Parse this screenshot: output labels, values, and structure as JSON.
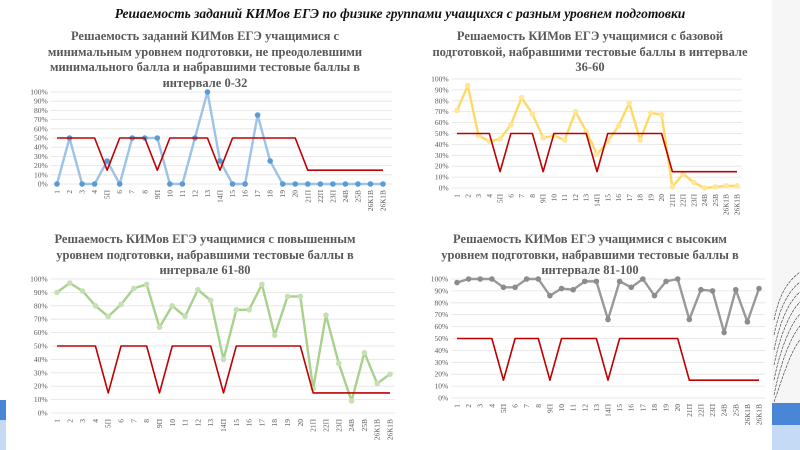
{
  "page": {
    "title": "Решаемость заданий КИМов ЕГЭ по физике группами учащихся с разным уровнем подготовки"
  },
  "chart_data": [
    {
      "type": "line",
      "title": "Решаемость заданий КИМов ЕГЭ учащимися с минимальным уровнем подготовки, не преодолевшими минимального балла и набравшими тестовые баллы в интервале 0-32",
      "categories": [
        "1",
        "2",
        "3",
        "4",
        "5П",
        "6",
        "7",
        "8",
        "9П",
        "10",
        "11",
        "12",
        "13",
        "14П",
        "15",
        "16",
        "17",
        "18",
        "19",
        "20",
        "21П",
        "22П",
        "23П",
        "24В",
        "25В",
        "26К1В",
        "26К1В"
      ],
      "ylim": [
        0,
        100
      ],
      "yticks": [
        "0%",
        "10%",
        "20%",
        "30%",
        "40%",
        "50%",
        "60%",
        "70%",
        "80%",
        "90%",
        "100%"
      ],
      "grid": true,
      "series": [
        {
          "color": "#9dc3e6",
          "marker_color": "#5b9bd5",
          "values": [
            0,
            50,
            0,
            0,
            25,
            0,
            50,
            50,
            50,
            0,
            0,
            50,
            100,
            25,
            0,
            0,
            75,
            25,
            0,
            0,
            0,
            0,
            0,
            0,
            0,
            0,
            0
          ]
        },
        {
          "color": "#c00000",
          "values": [
            50,
            50,
            50,
            50,
            15,
            50,
            50,
            50,
            15,
            50,
            50,
            50,
            50,
            15,
            50,
            50,
            50,
            50,
            50,
            50,
            15,
            15,
            15,
            15,
            15,
            15,
            15
          ]
        }
      ]
    },
    {
      "type": "line",
      "title": "Решаемость КИМов ЕГЭ учащимися с базовой подготовкой, набравшими тестовые баллы в интервале 36-60",
      "categories": [
        "1",
        "2",
        "3",
        "4",
        "5П",
        "6",
        "7",
        "8",
        "9П",
        "10",
        "11",
        "12",
        "13",
        "14П",
        "15",
        "16",
        "17",
        "18",
        "19",
        "20",
        "21П",
        "22П",
        "23П",
        "24В",
        "25В",
        "26К1В",
        "26К1В"
      ],
      "ylim": [
        0,
        100
      ],
      "yticks": [
        "0%",
        "10%",
        "20%",
        "30%",
        "40%",
        "50%",
        "60%",
        "70%",
        "80%",
        "90%",
        "100%"
      ],
      "grid": true,
      "series": [
        {
          "color": "#ffd966",
          "marker_color": "#ffe699",
          "values": [
            71,
            94,
            48,
            43,
            45,
            58,
            83,
            68,
            46,
            48,
            44,
            70,
            52,
            31,
            43,
            57,
            78,
            44,
            69,
            67,
            1,
            13,
            5,
            0,
            1,
            2,
            2
          ]
        },
        {
          "color": "#c00000",
          "values": [
            50,
            50,
            50,
            50,
            15,
            50,
            50,
            50,
            15,
            50,
            50,
            50,
            50,
            15,
            50,
            50,
            50,
            50,
            50,
            50,
            15,
            15,
            15,
            15,
            15,
            15,
            15
          ]
        }
      ]
    },
    {
      "type": "line",
      "title": "Решаемость КИМов ЕГЭ учащимися с повышенным уровнем подготовки, набравшими тестовые баллы в интервале 61-80",
      "categories": [
        "1",
        "2",
        "3",
        "4",
        "5П",
        "6",
        "7",
        "8",
        "9П",
        "10",
        "11",
        "12",
        "13",
        "14П",
        "15",
        "16",
        "17",
        "18",
        "19",
        "20",
        "21П",
        "22П",
        "23П",
        "24В",
        "25В",
        "26К1В",
        "26К1В"
      ],
      "ylim": [
        0,
        100
      ],
      "yticks": [
        "0%",
        "10%",
        "20%",
        "30%",
        "40%",
        "50%",
        "60%",
        "70%",
        "80%",
        "90%",
        "100%"
      ],
      "grid": true,
      "series": [
        {
          "color": "#a9d18e",
          "marker_color": "#c5e0b4",
          "values": [
            90,
            97,
            91,
            80,
            72,
            81,
            93,
            96,
            64,
            80,
            72,
            92,
            84,
            40,
            77,
            77,
            96,
            58,
            87,
            87,
            18,
            73,
            37,
            9,
            45,
            22,
            29
          ]
        },
        {
          "color": "#c00000",
          "values": [
            50,
            50,
            50,
            50,
            15,
            50,
            50,
            50,
            15,
            50,
            50,
            50,
            50,
            15,
            50,
            50,
            50,
            50,
            50,
            50,
            15,
            15,
            15,
            15,
            15,
            15,
            15
          ]
        }
      ]
    },
    {
      "type": "line",
      "title": "Решаемость КИМов ЕГЭ учащимися с высоким уровнем подготовки, набравшими тестовые баллы в интервале 81-100",
      "categories": [
        "1",
        "2",
        "3",
        "4",
        "5П",
        "6",
        "7",
        "8",
        "9П",
        "10",
        "11",
        "12",
        "13",
        "14П",
        "15",
        "16",
        "17",
        "18",
        "19",
        "20",
        "21П",
        "22П",
        "23П",
        "24В",
        "25В",
        "26К1В",
        "26К1В"
      ],
      "ylim": [
        0,
        100
      ],
      "yticks": [
        "0%",
        "10%",
        "20%",
        "30%",
        "40%",
        "50%",
        "60%",
        "70%",
        "80%",
        "90%",
        "100%"
      ],
      "grid": true,
      "series": [
        {
          "color": "#999999",
          "marker_color": "#8c8c8c",
          "values": [
            97,
            100,
            100,
            100,
            93,
            93,
            100,
            100,
            86,
            92,
            91,
            98,
            98,
            66,
            98,
            93,
            100,
            86,
            98,
            100,
            66,
            91,
            90,
            55,
            91,
            64,
            92
          ]
        },
        {
          "color": "#c00000",
          "values": [
            50,
            50,
            50,
            50,
            15,
            50,
            50,
            50,
            15,
            50,
            50,
            50,
            50,
            15,
            50,
            50,
            50,
            50,
            50,
            50,
            15,
            15,
            15,
            15,
            15,
            15,
            15
          ]
        }
      ]
    }
  ]
}
